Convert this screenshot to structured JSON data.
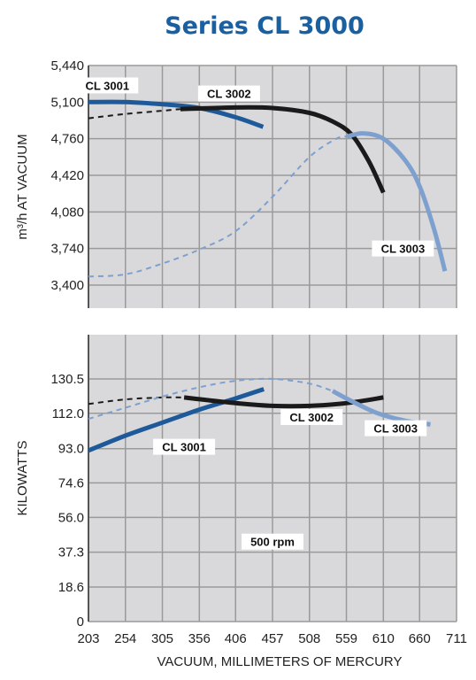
{
  "title": "Series CL 3000",
  "colors": {
    "title": "#1a5fa0",
    "cl3001": "#1e5a9a",
    "cl3002": "#1a1a1a",
    "cl3003": "#7ea0cf",
    "panel": "#d9d9db",
    "grid": "#9a9a9a"
  },
  "chart_data": [
    {
      "type": "line",
      "ylabel": "m³/h AT VACUUM",
      "xlabel": "",
      "x_ticks": [
        203,
        254,
        305,
        356,
        406,
        457,
        508,
        559,
        610,
        660,
        711
      ],
      "y_ticks": [
        "3,400",
        "3,740",
        "4,080",
        "4,420",
        "4,760",
        "5,100",
        "5,440"
      ],
      "xlim": [
        203,
        711
      ],
      "ylim": [
        3400,
        5440
      ],
      "grid": true,
      "series": [
        {
          "name": "CL 3001",
          "segments": [
            {
              "style": "solid",
              "points": [
                [
                  203,
                  5100
                ],
                [
                  254,
                  5100
                ],
                [
                  305,
                  5080
                ],
                [
                  356,
                  5045
                ],
                [
                  406,
                  4960
                ],
                [
                  444,
                  4870
                ]
              ]
            }
          ]
        },
        {
          "name": "CL 3002",
          "segments": [
            {
              "style": "dashed",
              "points": [
                [
                  203,
                  4950
                ],
                [
                  254,
                  4990
                ],
                [
                  305,
                  5020
                ],
                [
                  330,
                  5035
                ]
              ]
            },
            {
              "style": "solid",
              "points": [
                [
                  330,
                  5035
                ],
                [
                  406,
                  5050
                ],
                [
                  457,
                  5045
                ],
                [
                  508,
                  5000
                ],
                [
                  540,
                  4920
                ],
                [
                  566,
                  4800
                ],
                [
                  590,
                  4550
                ],
                [
                  610,
                  4260
                ]
              ]
            }
          ]
        },
        {
          "name": "CL 3003",
          "segments": [
            {
              "style": "dashed",
              "points": [
                [
                  203,
                  3480
                ],
                [
                  254,
                  3500
                ],
                [
                  305,
                  3600
                ],
                [
                  356,
                  3730
                ],
                [
                  406,
                  3900
                ],
                [
                  457,
                  4220
                ],
                [
                  508,
                  4590
                ],
                [
                  545,
                  4760
                ],
                [
                  560,
                  4780
                ]
              ]
            },
            {
              "style": "solid",
              "points": [
                [
                  560,
                  4780
                ],
                [
                  582,
                  4810
                ],
                [
                  610,
                  4760
                ],
                [
                  640,
                  4560
                ],
                [
                  660,
                  4320
                ],
                [
                  680,
                  3920
                ],
                [
                  695,
                  3530
                ]
              ]
            }
          ]
        }
      ],
      "annotations": [
        {
          "text": "CL 3001",
          "x": 229,
          "y": 5255
        },
        {
          "text": "CL 3002",
          "x": 397,
          "y": 5180
        },
        {
          "text": "CL 3003",
          "x": 637,
          "y": 3740
        }
      ]
    },
    {
      "type": "line",
      "ylabel": "KILOWATTS",
      "xlabel": "VACUUM, MILLIMETERS OF MERCURY",
      "x_ticks": [
        203,
        254,
        305,
        356,
        406,
        457,
        508,
        559,
        610,
        660,
        711
      ],
      "y_ticks": [
        "0",
        "18.6",
        "37.3",
        "56.0",
        "74.6",
        "93.0",
        "112.0",
        "130.5"
      ],
      "xlim": [
        203,
        711
      ],
      "ylim": [
        0,
        140
      ],
      "grid": true,
      "series": [
        {
          "name": "CL 3001",
          "segments": [
            {
              "style": "solid",
              "points": [
                [
                  203,
                  92
                ],
                [
                  254,
                  100
                ],
                [
                  305,
                  107
                ],
                [
                  356,
                  114
                ],
                [
                  406,
                  120
                ],
                [
                  445,
                  125
                ]
              ]
            }
          ]
        },
        {
          "name": "CL 3002",
          "segments": [
            {
              "style": "dashed",
              "points": [
                [
                  203,
                  117
                ],
                [
                  254,
                  119.5
                ],
                [
                  305,
                  120.5
                ],
                [
                  335,
                  120.5
                ]
              ]
            },
            {
              "style": "solid",
              "points": [
                [
                  335,
                  120.5
                ],
                [
                  406,
                  117.5
                ],
                [
                  457,
                  116
                ],
                [
                  508,
                  116
                ],
                [
                  559,
                  117.5
                ],
                [
                  610,
                  120.5
                ]
              ]
            }
          ]
        },
        {
          "name": "CL 3003",
          "segments": [
            {
              "style": "dashed",
              "points": [
                [
                  203,
                  109
                ],
                [
                  254,
                  115
                ],
                [
                  305,
                  121
                ],
                [
                  356,
                  126
                ],
                [
                  406,
                  129.5
                ],
                [
                  457,
                  130.5
                ],
                [
                  508,
                  128
                ],
                [
                  540,
                  124
                ]
              ]
            },
            {
              "style": "solid",
              "points": [
                [
                  540,
                  124
                ],
                [
                  559,
                  120
                ],
                [
                  590,
                  114
                ],
                [
                  610,
                  111
                ],
                [
                  640,
                  108
                ],
                [
                  675,
                  106
                ]
              ]
            }
          ]
        }
      ],
      "annotations": [
        {
          "text": "CL 3001",
          "x": 335,
          "y": 94
        },
        {
          "text": "CL 3002",
          "x": 511,
          "y": 110
        },
        {
          "text": "CL 3003",
          "x": 627,
          "y": 104
        },
        {
          "text": "500 rpm",
          "x": 457,
          "y": 43
        }
      ]
    }
  ]
}
